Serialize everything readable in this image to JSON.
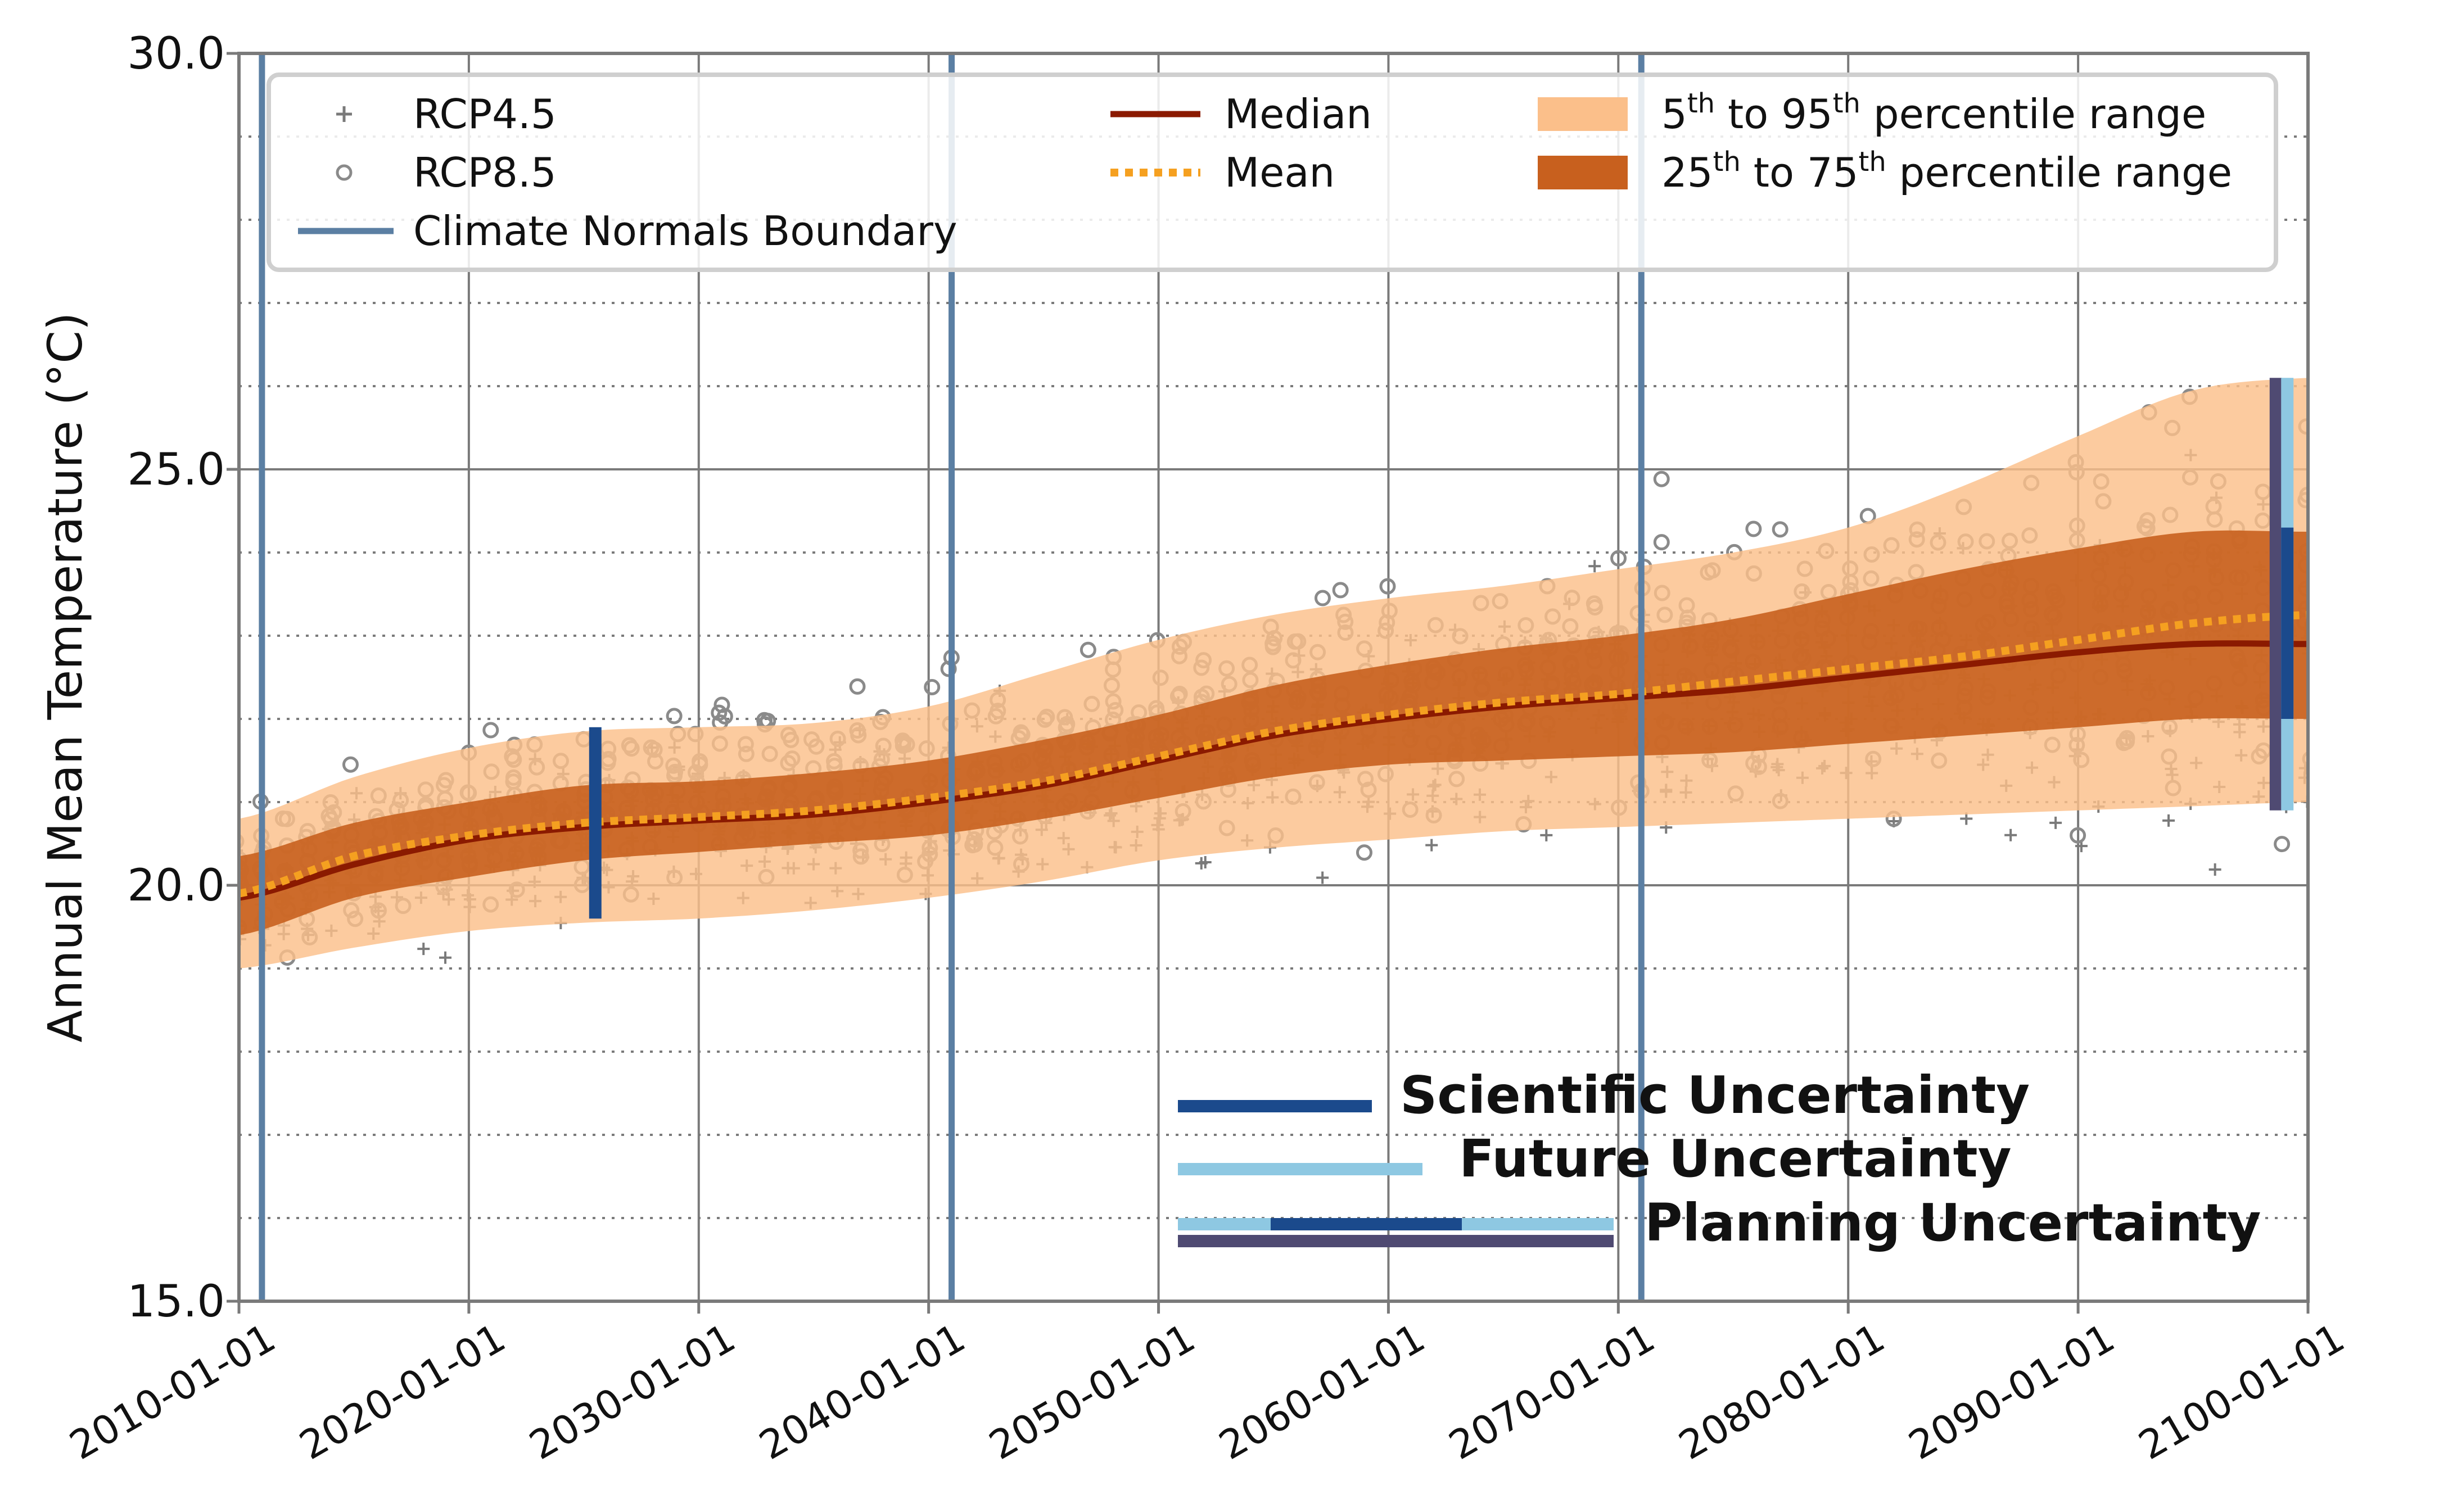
{
  "chart_data": {
    "type": "line",
    "title": "",
    "xlabel": "",
    "ylabel": "Annual Mean Temperature (°C)",
    "xlim": [
      2010,
      2100
    ],
    "ylim": [
      15.0,
      30.0
    ],
    "x_tick_labels": [
      {
        "year": 2010,
        "label": "2010-01-01"
      },
      {
        "year": 2020,
        "label": "2020-01-01"
      },
      {
        "year": 2030,
        "label": "2030-01-01"
      },
      {
        "year": 2040,
        "label": "2040-01-01"
      },
      {
        "year": 2050,
        "label": "2050-01-01"
      },
      {
        "year": 2060,
        "label": "2060-01-01"
      },
      {
        "year": 2070,
        "label": "2070-01-01"
      },
      {
        "year": 2080,
        "label": "2080-01-01"
      },
      {
        "year": 2090,
        "label": "2090-01-01"
      },
      {
        "year": 2100,
        "label": "2100-01-01"
      }
    ],
    "y_tick_labels": [
      {
        "value": 15.0,
        "label": "15.0"
      },
      {
        "value": 20.0,
        "label": "20.0"
      },
      {
        "value": 25.0,
        "label": "25.0"
      },
      {
        "value": 30.0,
        "label": "30.0"
      }
    ],
    "minor_y_gridlines": [
      16,
      17,
      18,
      19,
      21,
      22,
      23,
      24,
      26,
      27,
      28,
      29
    ],
    "years": [
      2010,
      2015,
      2020,
      2025,
      2030,
      2035,
      2040,
      2045,
      2050,
      2055,
      2060,
      2065,
      2070,
      2075,
      2080,
      2085,
      2090,
      2095,
      2100
    ],
    "series": [
      {
        "name": "Median",
        "color": "#8b1a00",
        "style": "solid",
        "values": [
          19.85,
          20.25,
          20.55,
          20.7,
          20.78,
          20.85,
          21.0,
          21.2,
          21.5,
          21.8,
          22.0,
          22.15,
          22.25,
          22.35,
          22.5,
          22.65,
          22.8,
          22.9,
          22.9
        ]
      },
      {
        "name": "Mean",
        "color": "#f5a020",
        "style": "dotted",
        "values": [
          19.9,
          20.35,
          20.6,
          20.75,
          20.82,
          20.9,
          21.05,
          21.25,
          21.55,
          21.85,
          22.05,
          22.2,
          22.3,
          22.45,
          22.6,
          22.75,
          22.95,
          23.15,
          23.25
        ]
      }
    ],
    "bands": [
      {
        "name": "5th to 95th percentile range",
        "color": "#fbbf8a",
        "lower": [
          19.0,
          19.25,
          19.45,
          19.55,
          19.6,
          19.7,
          19.85,
          20.05,
          20.3,
          20.45,
          20.55,
          20.65,
          20.7,
          20.75,
          20.8,
          20.85,
          20.9,
          20.95,
          21.0
        ],
        "upper": [
          20.8,
          21.3,
          21.65,
          21.85,
          21.9,
          21.95,
          22.15,
          22.55,
          22.95,
          23.25,
          23.45,
          23.6,
          23.8,
          24.0,
          24.3,
          24.8,
          25.4,
          25.95,
          26.1
        ]
      },
      {
        "name": "25th to 75th percentile range",
        "color": "#c8601e",
        "lower": [
          19.4,
          19.85,
          20.1,
          20.3,
          20.4,
          20.5,
          20.6,
          20.8,
          21.05,
          21.3,
          21.45,
          21.5,
          21.55,
          21.6,
          21.7,
          21.8,
          21.9,
          22.0,
          22.0
        ],
        "upper": [
          20.35,
          20.75,
          21.0,
          21.2,
          21.25,
          21.35,
          21.5,
          21.75,
          22.05,
          22.4,
          22.65,
          22.85,
          23.0,
          23.2,
          23.5,
          23.8,
          24.05,
          24.25,
          24.25
        ]
      }
    ],
    "scatter_series": [
      {
        "name": "RCP4.5",
        "marker": "+",
        "color": "#7a7a7a"
      },
      {
        "name": "RCP8.5",
        "marker": "o",
        "color": "#8a8a8a"
      }
    ],
    "climate_normals_boundaries": [
      2011,
      2041,
      2071
    ],
    "uncertainty_bars": [
      {
        "name": "Scientific Uncertainty",
        "year": 2025.5,
        "from": 19.6,
        "to": 21.9,
        "color": "#1b4a8c"
      },
      {
        "name": "Planning Uncertainty",
        "year": 2098.6,
        "from": 20.9,
        "to": 26.1,
        "color": "#4f4a72"
      },
      {
        "name": "Future Uncertainty",
        "year": 2099.1,
        "from": 20.9,
        "to": 26.1,
        "color": "#8ec8e2"
      },
      {
        "name": "Scientific Uncertainty",
        "year": 2099.1,
        "from": 22.0,
        "to": 24.3,
        "color": "#1b4a8c"
      }
    ],
    "legend": {
      "placement": "top",
      "entries": [
        {
          "label": "RCP4.5",
          "symbol": "plus"
        },
        {
          "label": "RCP8.5",
          "symbol": "circle"
        },
        {
          "label": "Climate Normals Boundary",
          "symbol": "vline"
        },
        {
          "label": "Median",
          "symbol": "line"
        },
        {
          "label": "Mean",
          "symbol": "dotted"
        },
        {
          "label": "5th to 95th percentile range",
          "symbol": "band-light",
          "parts": [
            {
              "t": "5"
            },
            {
              "t": "th",
              "sup": true
            },
            {
              "t": " to 95"
            },
            {
              "t": "th",
              "sup": true
            },
            {
              "t": " percentile range"
            }
          ]
        },
        {
          "label": "25th to 75th percentile range",
          "symbol": "band-dark",
          "parts": [
            {
              "t": "25"
            },
            {
              "t": "th",
              "sup": true
            },
            {
              "t": " to 75"
            },
            {
              "t": "th",
              "sup": true
            },
            {
              "t": " percentile range"
            }
          ]
        }
      ]
    },
    "annotation_legend": {
      "placement": "bottom-right",
      "entries": [
        {
          "label": "Scientific Uncertainty"
        },
        {
          "label": "Future Uncertainty"
        },
        {
          "label": "Planning Uncertainty"
        }
      ]
    },
    "colors": {
      "boundary": "#5b7fa3",
      "science": "#1b4a8c",
      "future": "#8ec8e2",
      "planning": "#4f4a72",
      "axes": "#7a7a7a",
      "grid": "#7a7a7a",
      "text": "#111111"
    }
  }
}
